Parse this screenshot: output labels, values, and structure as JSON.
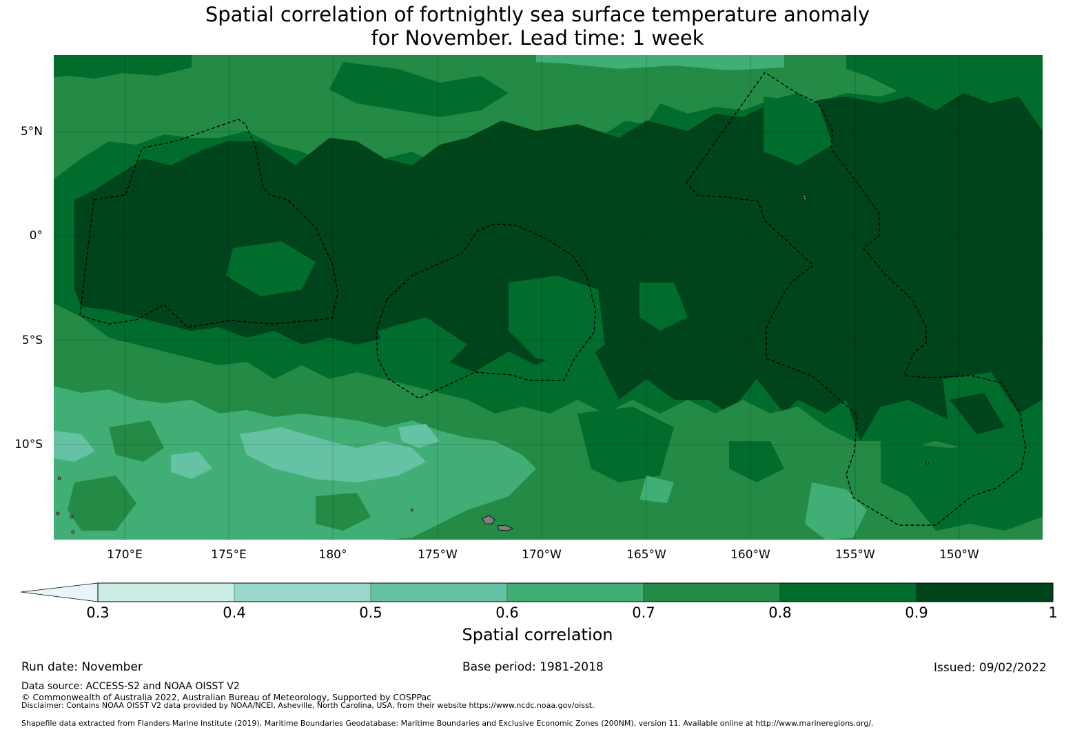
{
  "title": {
    "line1": "Spatial correlation of fortnightly sea surface temperature anomaly",
    "line2": "for November. Lead time: 1 week"
  },
  "map": {
    "lat_labels": [
      "5°N",
      "0°",
      "5°S",
      "10°S"
    ],
    "lon_labels": [
      "170°E",
      "175°E",
      "180°",
      "175°W",
      "170°W",
      "165°W",
      "160°W",
      "155°W",
      "150°W"
    ],
    "land_color": "#808080",
    "eez_line_color": "#000000"
  },
  "colorbar": {
    "label": "Spatial correlation",
    "tick_labels": [
      "0.3",
      "0.4",
      "0.5",
      "0.6",
      "0.7",
      "0.8",
      "0.9",
      "1"
    ],
    "extend_color": "#e7f5f9",
    "bins": [
      {
        "min": 0.3,
        "max": 0.4,
        "color": "#ccece6"
      },
      {
        "min": 0.4,
        "max": 0.5,
        "color": "#99d8c9"
      },
      {
        "min": 0.5,
        "max": 0.6,
        "color": "#66c2a4"
      },
      {
        "min": 0.6,
        "max": 0.7,
        "color": "#41ae76"
      },
      {
        "min": 0.7,
        "max": 0.8,
        "color": "#238b45"
      },
      {
        "min": 0.8,
        "max": 0.9,
        "color": "#006d2c"
      },
      {
        "min": 0.9,
        "max": 1.0,
        "color": "#00441b"
      }
    ]
  },
  "footer": {
    "run_date": "Run date: November",
    "base_period": "Base period: 1981-2018",
    "issued": "Issued: 09/02/2022",
    "data_source": "Data source: ACCESS-S2 and NOAA OISST V2",
    "copyright": "© Commonwealth of Australia 2022, Australian Bureau of Meteorology, Supported by COSPPac",
    "disclaimer": "Disclaimer: Contains NOAA OISST V2 data provided by NOAA/NCEI, Asheville, North Carolina, USA, from their website https://www.ncdc.noaa.gov/oisst.",
    "shapefile": "Shapefile data extracted from Flanders Marine Institute (2019), Maritime Boundaries Geodatabase: Maritime Boundaries and Exclusive Economic Zones (200NM), version 11. Available online at http://www.marineregions.org/."
  }
}
